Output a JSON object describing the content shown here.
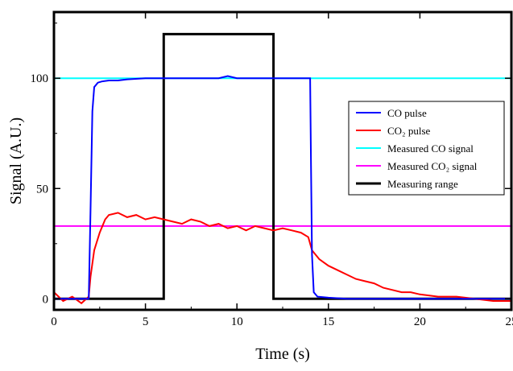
{
  "chart_data": {
    "type": "line",
    "title": "",
    "xlabel": "Time (s)",
    "ylabel": "Signal (A.U.)",
    "xlim": [
      0,
      25
    ],
    "ylim": [
      -5,
      130
    ],
    "xticks": [
      0,
      5,
      10,
      15,
      20,
      25
    ],
    "xtick_labels": [
      "0",
      "5",
      "10",
      "15",
      "20",
      "25"
    ],
    "yticks": [
      0,
      50,
      100
    ],
    "ytick_labels": [
      "0",
      "50",
      "100"
    ],
    "legend_position": "right",
    "grid": false,
    "series": [
      {
        "name": "CO pulse",
        "color": "#0000ff",
        "x": [
          0,
          1.5,
          1.9,
          2.0,
          2.1,
          2.2,
          2.4,
          2.6,
          3.0,
          3.5,
          4.0,
          5.0,
          6.0,
          7.0,
          8.0,
          9.0,
          9.5,
          10.0,
          11.0,
          12.0,
          13.0,
          13.5,
          13.9,
          14.0,
          14.05,
          14.1,
          14.2,
          14.4,
          15.0,
          16.0,
          18.0,
          20.0,
          22.0,
          25.0
        ],
        "y": [
          0,
          0,
          0,
          40,
          85,
          96,
          98,
          98.5,
          99,
          99,
          99.5,
          100,
          100,
          100,
          100,
          100,
          101,
          100,
          100,
          100,
          100,
          100,
          100,
          100,
          60,
          20,
          3,
          1,
          0.5,
          0,
          0,
          0,
          0,
          0
        ]
      },
      {
        "name": "CO₂ pulse",
        "color": "#ff0000",
        "x": [
          0,
          0.5,
          1.0,
          1.5,
          1.9,
          2.0,
          2.2,
          2.5,
          2.8,
          3.0,
          3.5,
          4.0,
          4.5,
          5.0,
          5.5,
          6.0,
          6.5,
          7.0,
          7.5,
          8.0,
          8.5,
          9.0,
          9.5,
          10.0,
          10.5,
          11.0,
          11.5,
          12.0,
          12.5,
          13.0,
          13.5,
          13.9,
          14.1,
          14.5,
          15.0,
          15.5,
          16.0,
          16.5,
          17.0,
          17.5,
          18.0,
          18.5,
          19.0,
          19.5,
          20.0,
          21.0,
          22.0,
          23.0,
          24.0,
          25.0
        ],
        "y": [
          3,
          -1,
          1,
          -2,
          1,
          10,
          22,
          30,
          36,
          38,
          39,
          37,
          38,
          36,
          37,
          36,
          35,
          34,
          36,
          35,
          33,
          34,
          32,
          33,
          31,
          33,
          32,
          31,
          32,
          31,
          30,
          28,
          22,
          18,
          15,
          13,
          11,
          9,
          8,
          7,
          5,
          4,
          3,
          3,
          2,
          1,
          1,
          0,
          -1,
          -1
        ]
      },
      {
        "name": "Measured CO signal",
        "color": "#00ffff",
        "x": [
          0,
          25
        ],
        "y": [
          100,
          100
        ]
      },
      {
        "name": "Measured CO₂ signal",
        "color": "#ff00ff",
        "x": [
          0,
          25
        ],
        "y": [
          33,
          33
        ]
      },
      {
        "name": "Measuring range",
        "color": "#000000",
        "x": [
          0,
          6,
          6,
          12,
          12,
          25
        ],
        "y": [
          0,
          0,
          120,
          120,
          0,
          0
        ]
      }
    ]
  }
}
